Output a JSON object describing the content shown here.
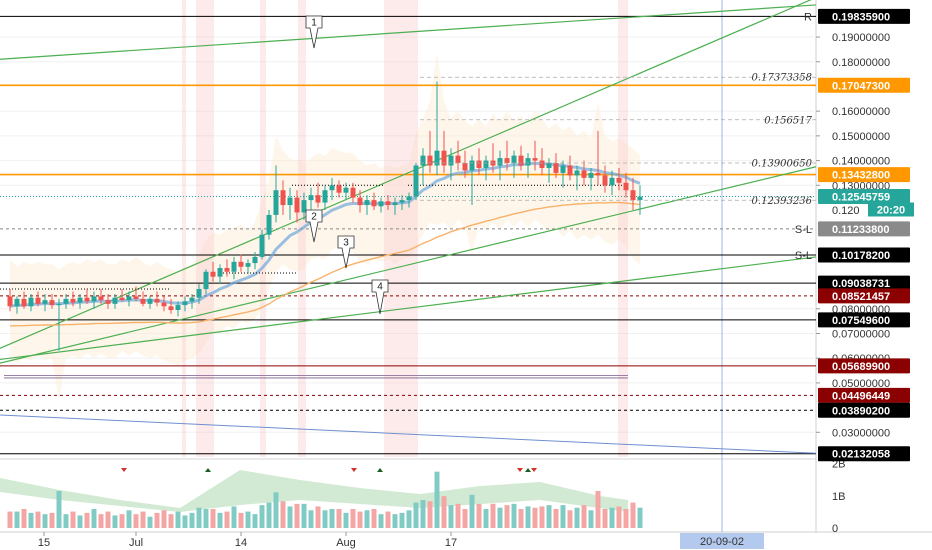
{
  "chart_data": {
    "type": "candlestick",
    "main": {
      "ylim": [
        0.02,
        0.205
      ],
      "axis_ticks": [
        0.19,
        0.18,
        0.16,
        0.15,
        0.14,
        0.13,
        0.08,
        0.07,
        0.06,
        0.05,
        0.03
      ],
      "axis_tick_labels": [
        "0.19000000",
        "0.18000000",
        "0.16000000",
        "0.15000000",
        "0.14000000",
        "0.13000000",
        "0.08000000",
        "0.07000000",
        "0.06000000",
        "0.05000000",
        "0.03000000"
      ],
      "partial_tick": {
        "value": 0.12,
        "label": "0.120"
      },
      "countdown": "20:20",
      "price_lines": [
        {
          "value": 0.198359,
          "label": "0.19835900",
          "color": "#000000",
          "tag": "R",
          "style": "solid"
        },
        {
          "value": 0.170473,
          "label": "0.17047300",
          "color": "#ff9800",
          "tag": "",
          "style": "solid"
        },
        {
          "value": 0.134328,
          "label": "0.13432800",
          "color": "#ff9800",
          "tag": "",
          "style": "solid"
        },
        {
          "value": 0.12545759,
          "label": "0.12545759",
          "color": "#26a69a",
          "tag": "",
          "style": "dotted"
        },
        {
          "value": 0.112338,
          "label": "0.11233800",
          "color": "#888888",
          "tag": "S-L",
          "style": "dashed"
        },
        {
          "value": 0.101782,
          "label": "0.10178200",
          "color": "#000000",
          "tag": "S-L",
          "style": "solid"
        },
        {
          "value": 0.09038731,
          "label": "0.09038731",
          "color": "#000000",
          "tag": "",
          "style": "solid"
        },
        {
          "value": 0.08521457,
          "label": "0.08521457",
          "color": "#8b0000",
          "tag": "",
          "style": "dashed"
        },
        {
          "value": 0.075496,
          "label": "0.07549600",
          "color": "#000000",
          "tag": "",
          "style": "solid"
        },
        {
          "value": 0.056899,
          "label": "0.05689900",
          "color": "#8b0000",
          "tag": "",
          "style": "solid"
        },
        {
          "value": 0.04496449,
          "label": "0.04496449",
          "color": "#8b0000",
          "tag": "",
          "style": "dashed"
        },
        {
          "value": 0.038902,
          "label": "0.03890200",
          "color": "#000000",
          "tag": "",
          "style": "dashed"
        },
        {
          "value": 0.02132058,
          "label": "0.02132058",
          "color": "#000000",
          "tag": "",
          "style": "solid"
        }
      ],
      "fib_labels": [
        {
          "value": 0.17373358,
          "label": "0.17373358"
        },
        {
          "value": 0.156517,
          "label": "0.156517"
        },
        {
          "value": 0.1390065,
          "label": "0.13900650"
        },
        {
          "value": 0.12393236,
          "label": "0.12393236"
        }
      ],
      "callouts": [
        "1",
        "2",
        "3",
        "4"
      ],
      "candles": [
        {
          "o": 0.085,
          "h": 0.088,
          "l": 0.079,
          "c": 0.081
        },
        {
          "o": 0.081,
          "h": 0.085,
          "l": 0.078,
          "c": 0.084
        },
        {
          "o": 0.084,
          "h": 0.087,
          "l": 0.08,
          "c": 0.081
        },
        {
          "o": 0.081,
          "h": 0.086,
          "l": 0.079,
          "c": 0.0845
        },
        {
          "o": 0.0845,
          "h": 0.087,
          "l": 0.081,
          "c": 0.082
        },
        {
          "o": 0.082,
          "h": 0.086,
          "l": 0.079,
          "c": 0.0835
        },
        {
          "o": 0.0835,
          "h": 0.086,
          "l": 0.08,
          "c": 0.0815
        },
        {
          "o": 0.0815,
          "h": 0.084,
          "l": 0.063,
          "c": 0.082
        },
        {
          "o": 0.082,
          "h": 0.086,
          "l": 0.08,
          "c": 0.084
        },
        {
          "o": 0.084,
          "h": 0.087,
          "l": 0.081,
          "c": 0.0825
        },
        {
          "o": 0.0825,
          "h": 0.086,
          "l": 0.08,
          "c": 0.0845
        },
        {
          "o": 0.0845,
          "h": 0.088,
          "l": 0.082,
          "c": 0.083
        },
        {
          "o": 0.083,
          "h": 0.087,
          "l": 0.08,
          "c": 0.085
        },
        {
          "o": 0.085,
          "h": 0.088,
          "l": 0.082,
          "c": 0.0835
        },
        {
          "o": 0.0835,
          "h": 0.086,
          "l": 0.08,
          "c": 0.082
        },
        {
          "o": 0.082,
          "h": 0.086,
          "l": 0.08,
          "c": 0.0845
        },
        {
          "o": 0.0845,
          "h": 0.088,
          "l": 0.083,
          "c": 0.0835
        },
        {
          "o": 0.0835,
          "h": 0.087,
          "l": 0.081,
          "c": 0.085
        },
        {
          "o": 0.085,
          "h": 0.089,
          "l": 0.083,
          "c": 0.084
        },
        {
          "o": 0.084,
          "h": 0.087,
          "l": 0.081,
          "c": 0.082
        },
        {
          "o": 0.082,
          "h": 0.085,
          "l": 0.08,
          "c": 0.084
        },
        {
          "o": 0.084,
          "h": 0.087,
          "l": 0.081,
          "c": 0.0825
        },
        {
          "o": 0.0825,
          "h": 0.085,
          "l": 0.079,
          "c": 0.081
        },
        {
          "o": 0.081,
          "h": 0.084,
          "l": 0.078,
          "c": 0.0795
        },
        {
          "o": 0.0795,
          "h": 0.083,
          "l": 0.077,
          "c": 0.0815
        },
        {
          "o": 0.0815,
          "h": 0.085,
          "l": 0.079,
          "c": 0.083
        },
        {
          "o": 0.083,
          "h": 0.086,
          "l": 0.08,
          "c": 0.0845
        },
        {
          "o": 0.0845,
          "h": 0.09,
          "l": 0.082,
          "c": 0.088
        },
        {
          "o": 0.088,
          "h": 0.096,
          "l": 0.086,
          "c": 0.095
        },
        {
          "o": 0.095,
          "h": 0.099,
          "l": 0.091,
          "c": 0.093
        },
        {
          "o": 0.093,
          "h": 0.098,
          "l": 0.09,
          "c": 0.0965
        },
        {
          "o": 0.0965,
          "h": 0.1,
          "l": 0.093,
          "c": 0.095
        },
        {
          "o": 0.095,
          "h": 0.101,
          "l": 0.092,
          "c": 0.099
        },
        {
          "o": 0.099,
          "h": 0.102,
          "l": 0.095,
          "c": 0.097
        },
        {
          "o": 0.097,
          "h": 0.1,
          "l": 0.094,
          "c": 0.0985
        },
        {
          "o": 0.0985,
          "h": 0.103,
          "l": 0.096,
          "c": 0.101
        },
        {
          "o": 0.101,
          "h": 0.112,
          "l": 0.1,
          "c": 0.11
        },
        {
          "o": 0.11,
          "h": 0.12,
          "l": 0.108,
          "c": 0.118
        },
        {
          "o": 0.118,
          "h": 0.138,
          "l": 0.115,
          "c": 0.128
        },
        {
          "o": 0.128,
          "h": 0.132,
          "l": 0.118,
          "c": 0.122
        },
        {
          "o": 0.122,
          "h": 0.129,
          "l": 0.116,
          "c": 0.125
        },
        {
          "o": 0.125,
          "h": 0.128,
          "l": 0.115,
          "c": 0.119
        },
        {
          "o": 0.119,
          "h": 0.127,
          "l": 0.116,
          "c": 0.124
        },
        {
          "o": 0.124,
          "h": 0.129,
          "l": 0.12,
          "c": 0.126
        },
        {
          "o": 0.126,
          "h": 0.131,
          "l": 0.121,
          "c": 0.123
        },
        {
          "o": 0.123,
          "h": 0.13,
          "l": 0.12,
          "c": 0.128
        },
        {
          "o": 0.128,
          "h": 0.133,
          "l": 0.124,
          "c": 0.13
        },
        {
          "o": 0.13,
          "h": 0.132,
          "l": 0.125,
          "c": 0.127
        },
        {
          "o": 0.127,
          "h": 0.131,
          "l": 0.124,
          "c": 0.129
        },
        {
          "o": 0.129,
          "h": 0.131,
          "l": 0.123,
          "c": 0.125
        },
        {
          "o": 0.125,
          "h": 0.128,
          "l": 0.119,
          "c": 0.122
        },
        {
          "o": 0.122,
          "h": 0.126,
          "l": 0.118,
          "c": 0.124
        },
        {
          "o": 0.124,
          "h": 0.127,
          "l": 0.12,
          "c": 0.1215
        },
        {
          "o": 0.1215,
          "h": 0.125,
          "l": 0.119,
          "c": 0.1235
        },
        {
          "o": 0.1235,
          "h": 0.126,
          "l": 0.12,
          "c": 0.122
        },
        {
          "o": 0.122,
          "h": 0.125,
          "l": 0.118,
          "c": 0.123
        },
        {
          "o": 0.123,
          "h": 0.126,
          "l": 0.12,
          "c": 0.124
        },
        {
          "o": 0.124,
          "h": 0.127,
          "l": 0.121,
          "c": 0.1255
        },
        {
          "o": 0.1255,
          "h": 0.139,
          "l": 0.124,
          "c": 0.138
        },
        {
          "o": 0.138,
          "h": 0.145,
          "l": 0.13,
          "c": 0.142
        },
        {
          "o": 0.142,
          "h": 0.152,
          "l": 0.135,
          "c": 0.138
        },
        {
          "o": 0.138,
          "h": 0.172,
          "l": 0.134,
          "c": 0.144
        },
        {
          "o": 0.144,
          "h": 0.152,
          "l": 0.135,
          "c": 0.138
        },
        {
          "o": 0.138,
          "h": 0.145,
          "l": 0.132,
          "c": 0.142
        },
        {
          "o": 0.142,
          "h": 0.148,
          "l": 0.136,
          "c": 0.139
        },
        {
          "o": 0.139,
          "h": 0.144,
          "l": 0.133,
          "c": 0.136
        },
        {
          "o": 0.136,
          "h": 0.142,
          "l": 0.122,
          "c": 0.14
        },
        {
          "o": 0.14,
          "h": 0.145,
          "l": 0.134,
          "c": 0.137
        },
        {
          "o": 0.137,
          "h": 0.142,
          "l": 0.132,
          "c": 0.14
        },
        {
          "o": 0.14,
          "h": 0.147,
          "l": 0.135,
          "c": 0.138
        },
        {
          "o": 0.138,
          "h": 0.144,
          "l": 0.132,
          "c": 0.141
        },
        {
          "o": 0.141,
          "h": 0.148,
          "l": 0.136,
          "c": 0.139
        },
        {
          "o": 0.139,
          "h": 0.144,
          "l": 0.133,
          "c": 0.142
        },
        {
          "o": 0.142,
          "h": 0.146,
          "l": 0.136,
          "c": 0.138
        },
        {
          "o": 0.138,
          "h": 0.143,
          "l": 0.133,
          "c": 0.141
        },
        {
          "o": 0.141,
          "h": 0.148,
          "l": 0.136,
          "c": 0.14
        },
        {
          "o": 0.14,
          "h": 0.145,
          "l": 0.134,
          "c": 0.137
        },
        {
          "o": 0.137,
          "h": 0.141,
          "l": 0.131,
          "c": 0.139
        },
        {
          "o": 0.139,
          "h": 0.143,
          "l": 0.133,
          "c": 0.135
        },
        {
          "o": 0.135,
          "h": 0.14,
          "l": 0.129,
          "c": 0.138
        },
        {
          "o": 0.138,
          "h": 0.142,
          "l": 0.132,
          "c": 0.134
        },
        {
          "o": 0.134,
          "h": 0.138,
          "l": 0.128,
          "c": 0.136
        },
        {
          "o": 0.136,
          "h": 0.14,
          "l": 0.13,
          "c": 0.133
        },
        {
          "o": 0.133,
          "h": 0.137,
          "l": 0.128,
          "c": 0.135
        },
        {
          "o": 0.135,
          "h": 0.152,
          "l": 0.13,
          "c": 0.134
        },
        {
          "o": 0.134,
          "h": 0.138,
          "l": 0.127,
          "c": 0.13
        },
        {
          "o": 0.13,
          "h": 0.136,
          "l": 0.126,
          "c": 0.133
        },
        {
          "o": 0.133,
          "h": 0.137,
          "l": 0.128,
          "c": 0.131
        },
        {
          "o": 0.131,
          "h": 0.135,
          "l": 0.125,
          "c": 0.128
        },
        {
          "o": 0.128,
          "h": 0.133,
          "l": 0.12,
          "c": 0.124
        },
        {
          "o": 0.124,
          "h": 0.13,
          "l": 0.118,
          "c": 0.1254
        }
      ]
    },
    "volume": {
      "ylim": [
        0,
        2.05
      ],
      "axis_ticks": [
        2,
        1,
        0
      ],
      "axis_tick_labels": [
        "2B",
        "1B",
        "0"
      ]
    },
    "x_axis": {
      "tick_labels": [
        "15",
        "Jul",
        "14",
        "Aug",
        "17"
      ],
      "tick_index": [
        4,
        18,
        33,
        48,
        63
      ],
      "cursor_label": "20-09-02"
    },
    "colors": {
      "up": "#26a69a",
      "down": "#ef5350",
      "trend": "#4caf50",
      "ema_orange": "#f7b26a",
      "ema_blue": "#6fa8dc",
      "background": "#ffffff"
    }
  }
}
